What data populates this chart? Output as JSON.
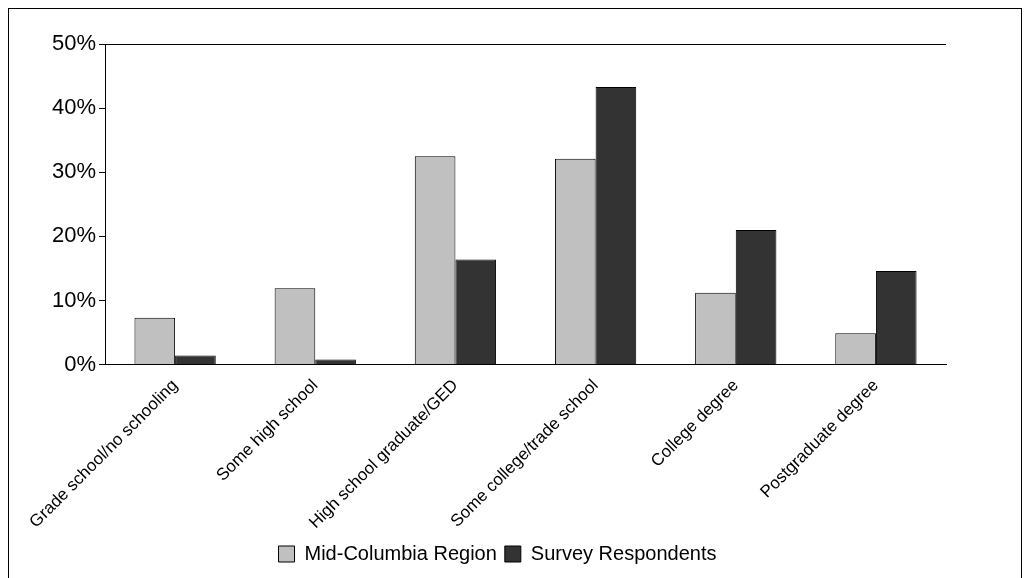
{
  "chart_data": {
    "type": "bar",
    "categories": [
      "Grade school/no schooling",
      "Some high school",
      "High school graduate/GED",
      "Some college/trade school",
      "College degree",
      "Postgraduate degree"
    ],
    "series": [
      {
        "name": "Mid-Columbia Region",
        "color": "#c0c0c0",
        "values": [
          7.3,
          11.9,
          32.5,
          32.1,
          11.2,
          4.9
        ]
      },
      {
        "name": "Survey Respondents",
        "color": "#333333",
        "values": [
          1.4,
          0.8,
          16.4,
          43.3,
          21.0,
          14.6
        ]
      }
    ],
    "ylim": [
      0,
      50
    ],
    "yticks": [
      {
        "value": 0,
        "label": "0%"
      },
      {
        "value": 10,
        "label": "10%"
      },
      {
        "value": 20,
        "label": "20%"
      },
      {
        "value": 30,
        "label": "30%"
      },
      {
        "value": 40,
        "label": "40%"
      },
      {
        "value": 50,
        "label": "50%"
      }
    ],
    "grid": false,
    "legend": "bottom"
  }
}
